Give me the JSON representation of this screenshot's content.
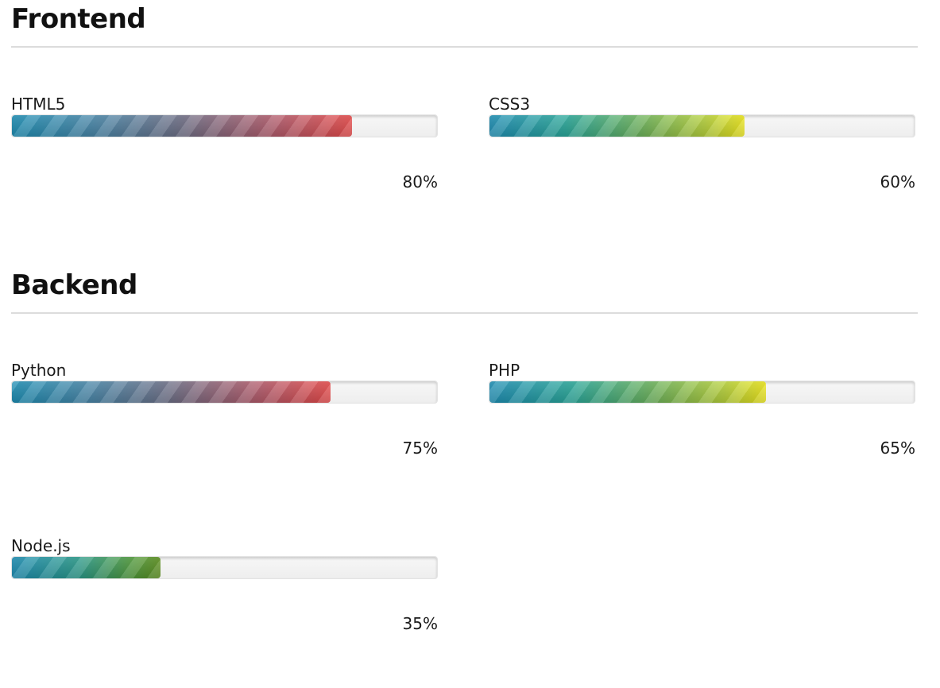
{
  "sections": [
    {
      "title": "Frontend",
      "skills": [
        {
          "name": "HTML5",
          "percent_label": "80%",
          "value": 0.8,
          "color": "red"
        },
        {
          "name": "CSS3",
          "percent_label": "60%",
          "value": 0.6,
          "color": "yellow"
        }
      ]
    },
    {
      "title": "Backend",
      "skills": [
        {
          "name": "Python",
          "percent_label": "75%",
          "value": 0.75,
          "color": "red"
        },
        {
          "name": "PHP",
          "percent_label": "65%",
          "value": 0.65,
          "color": "yellow"
        },
        {
          "name": "Node.js",
          "percent_label": "35%",
          "value": 0.35,
          "color": "green"
        }
      ]
    }
  ],
  "colors": {
    "red_end": "#e64a4a",
    "yellow_end": "#ece61a",
    "green_end": "#5b8f1c",
    "start": "#1e8fb5",
    "divider": "#dcdcdc"
  }
}
